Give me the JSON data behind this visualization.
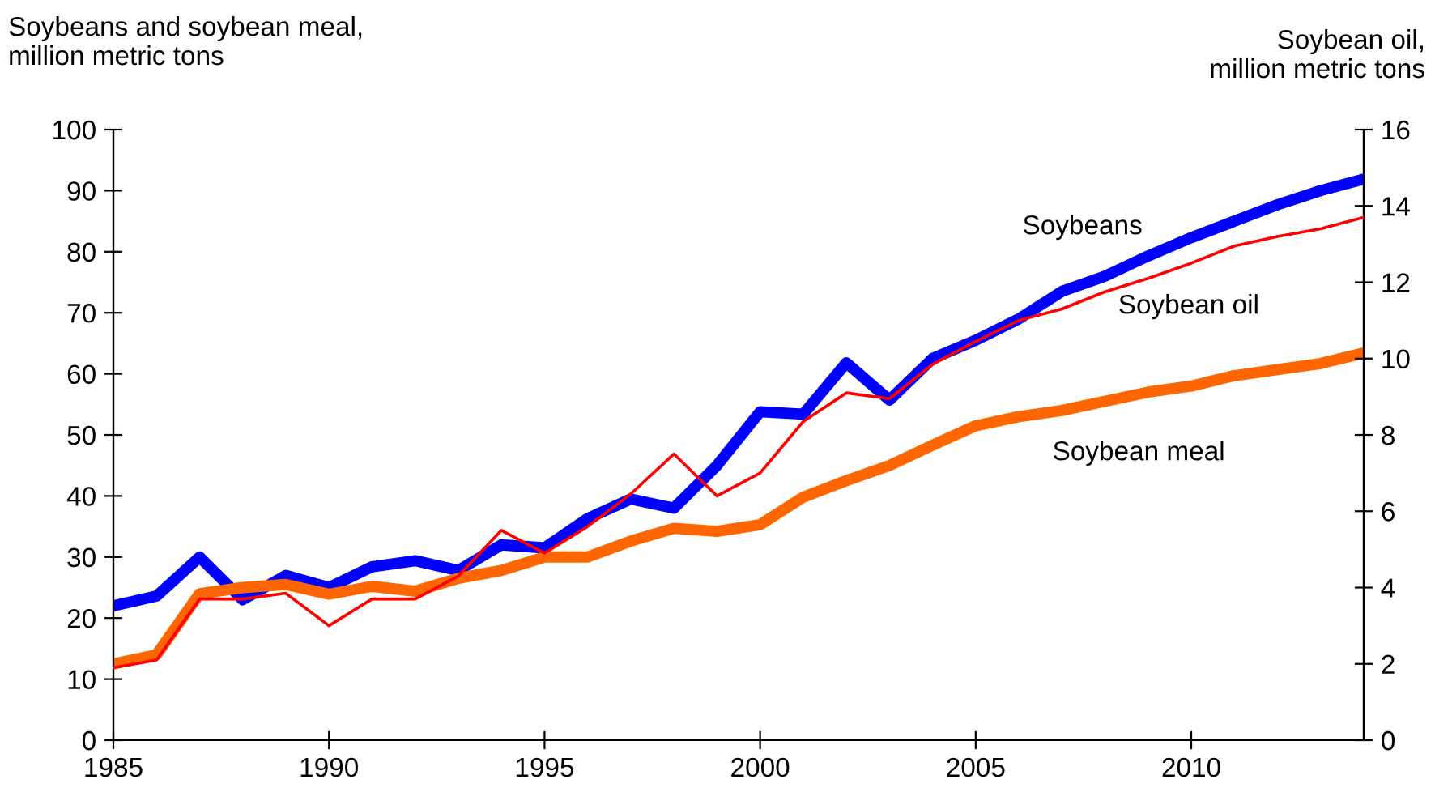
{
  "chart_data": {
    "type": "line",
    "ylabel": "Soybeans and soybean meal,\nmillion metric tons",
    "y2label": "Soybean oil,\nmillion metric tons",
    "x": [
      1985,
      1986,
      1987,
      1988,
      1989,
      1990,
      1991,
      1992,
      1993,
      1994,
      1995,
      1996,
      1997,
      1998,
      1999,
      2000,
      2001,
      2002,
      2003,
      2004,
      2005,
      2006,
      2007,
      2008,
      2009,
      2010,
      2011,
      2012,
      2013,
      2014
    ],
    "series": [
      {
        "name": "Soybeans",
        "color": "#0000ff",
        "values": [
          22,
          23.6,
          30,
          23,
          27,
          25,
          28.4,
          29.4,
          27.8,
          32,
          31.5,
          36.3,
          39.5,
          38,
          45,
          53.8,
          53.4,
          61.8,
          55.7,
          62.5,
          65.5,
          69,
          73.5,
          76,
          79.3,
          82.3,
          85,
          87.7,
          90,
          91.9
        ]
      },
      {
        "name": "Soybean oil",
        "color": "#ff0000",
        "axis": "y2",
        "values": [
          1.9,
          2.1,
          3.7,
          3.7,
          3.85,
          3.0,
          3.7,
          3.7,
          4.3,
          5.5,
          4.9,
          5.6,
          6.45,
          7.5,
          6.4,
          7.0,
          8.35,
          9.1,
          8.95,
          9.85,
          10.45,
          11.0,
          11.3,
          11.75,
          12.1,
          12.5,
          12.95,
          13.2,
          13.4,
          13.7
        ]
      },
      {
        "name": "Soybean meal",
        "color": "#ff6600",
        "values": [
          12.5,
          14,
          24,
          25,
          25.5,
          23.9,
          25.2,
          24.4,
          26.5,
          27.8,
          30,
          30,
          32.6,
          34.7,
          34.2,
          35.3,
          39.8,
          42.5,
          45,
          48.3,
          51.5,
          53,
          54,
          55.5,
          57,
          58,
          59.7,
          60.7,
          61.7,
          63.4
        ]
      }
    ],
    "xlim": [
      1985,
      2014
    ],
    "xticks": [
      1985,
      1990,
      1995,
      2000,
      2005,
      2010
    ],
    "ylim": [
      0,
      100
    ],
    "yticks": [
      0,
      10,
      20,
      30,
      40,
      50,
      60,
      70,
      80,
      90,
      100
    ],
    "y2lim": [
      0,
      16
    ],
    "y2ticks": [
      0,
      2,
      4,
      6,
      8,
      10,
      12,
      14,
      16
    ],
    "grid": false,
    "legend": false,
    "marker": "none",
    "line_style": "solid"
  }
}
